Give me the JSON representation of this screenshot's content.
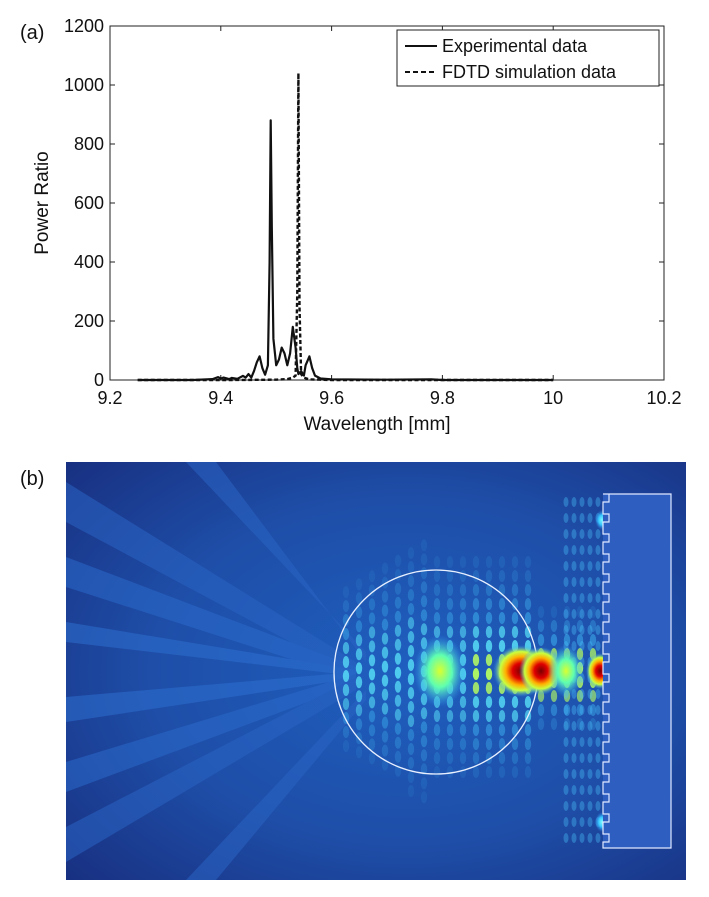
{
  "panel_labels": {
    "a": "(a)",
    "b": "(b)"
  },
  "chart_data": [
    {
      "type": "line",
      "panel": "(a)",
      "title": "",
      "xlabel": "Wavelength [mm]",
      "ylabel": "Power Ratio",
      "xlim": [
        9.2,
        10.2
      ],
      "ylim": [
        0,
        1200
      ],
      "xticks": [
        9.2,
        9.4,
        9.6,
        9.8,
        10,
        10.2
      ],
      "xtick_labels": [
        "9.2",
        "9.4",
        "9.6",
        "9.8",
        "10",
        "10.2"
      ],
      "yticks": [
        0,
        200,
        400,
        600,
        800,
        1000,
        1200
      ],
      "ytick_labels": [
        "0",
        "200",
        "400",
        "600",
        "800",
        "1000",
        "1200"
      ],
      "grid": false,
      "legend_position": "top-right",
      "series": [
        {
          "name": "Experimental data",
          "style": "solid",
          "color": "#111111",
          "x": [
            9.25,
            9.35,
            9.385,
            9.395,
            9.4,
            9.405,
            9.415,
            9.42,
            9.43,
            9.44,
            9.445,
            9.45,
            9.455,
            9.46,
            9.465,
            9.47,
            9.475,
            9.48,
            9.485,
            9.488,
            9.49,
            9.492,
            9.495,
            9.5,
            9.505,
            9.51,
            9.515,
            9.52,
            9.525,
            9.53,
            9.535,
            9.538,
            9.54,
            9.545,
            9.55,
            9.553,
            9.56,
            9.565,
            9.57,
            9.58,
            9.6,
            9.7,
            9.78,
            9.8,
            9.82,
            10.0
          ],
          "y": [
            0,
            0,
            3,
            10,
            5,
            8,
            3,
            7,
            4,
            14,
            8,
            20,
            8,
            30,
            60,
            80,
            40,
            18,
            50,
            400,
            880,
            520,
            140,
            50,
            70,
            110,
            90,
            50,
            90,
            180,
            110,
            40,
            20,
            30,
            15,
            50,
            80,
            40,
            15,
            5,
            2,
            1,
            2,
            0,
            0,
            0
          ]
        },
        {
          "name": "FDTD simulation data",
          "style": "dashed",
          "color": "#111111",
          "x": [
            9.25,
            9.42,
            9.5,
            9.52,
            9.53,
            9.535,
            9.538,
            9.54,
            9.542,
            9.545,
            9.55,
            9.56,
            9.6,
            10.0
          ],
          "y": [
            0,
            0,
            1,
            3,
            8,
            15,
            300,
            1040,
            250,
            20,
            8,
            2,
            0,
            0
          ]
        }
      ]
    },
    {
      "type": "heatmap",
      "panel": "(b)",
      "title": "",
      "description_colormap": "jet",
      "hotspots": [
        {
          "position_x": 0.6,
          "position_y": 0.51,
          "intensity": 0.95
        },
        {
          "position_x": 0.65,
          "position_y": 0.51,
          "intensity": 0.85
        },
        {
          "position_x": 0.78,
          "position_y": 0.51,
          "intensity": 0.8
        }
      ]
    }
  ]
}
